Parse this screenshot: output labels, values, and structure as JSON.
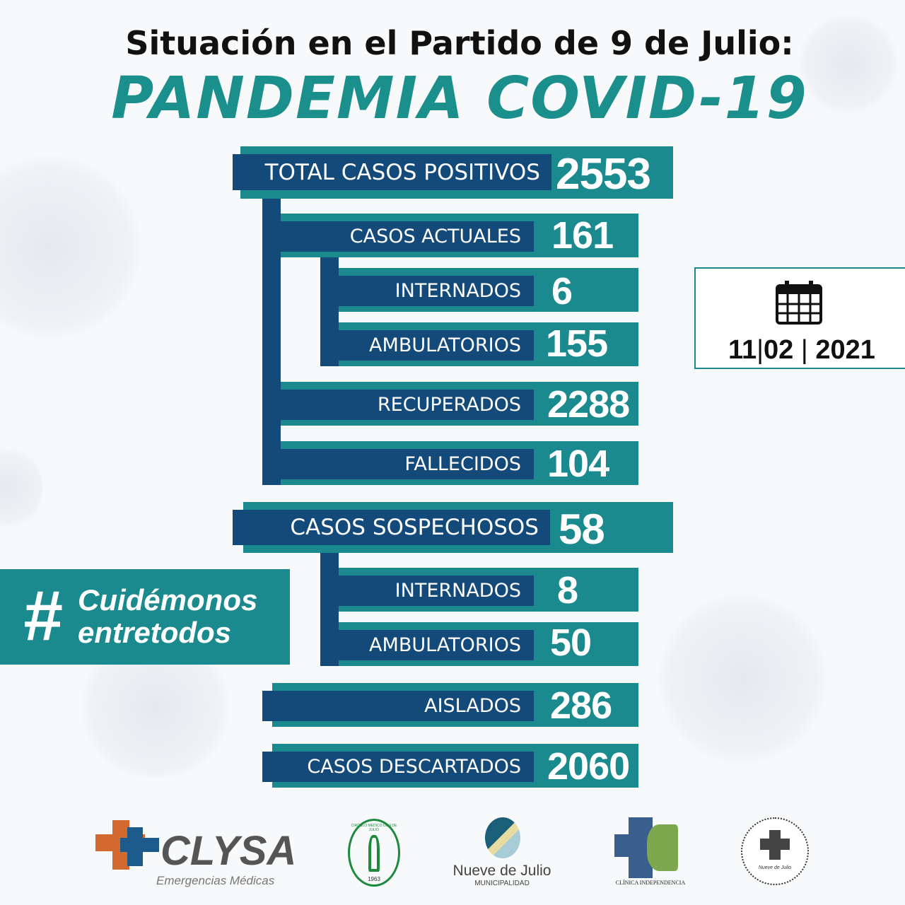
{
  "header": {
    "subtitle": "Situación en el Partido de 9 de Julio:",
    "title": "PANDEMIA COVID-19"
  },
  "stats": {
    "total_positivos": {
      "label": "TOTAL CASOS POSITIVOS",
      "value": "2553"
    },
    "actuales": {
      "label": "CASOS ACTUALES",
      "value": "161"
    },
    "actuales_internados": {
      "label": "INTERNADOS",
      "value": "6"
    },
    "actuales_ambulatorios": {
      "label": "AMBULATORIOS",
      "value": "155"
    },
    "recuperados": {
      "label": "RECUPERADOS",
      "value": "2288"
    },
    "fallecidos": {
      "label": "FALLECIDOS",
      "value": "104"
    },
    "sospechosos": {
      "label": "CASOS SOSPECHOSOS",
      "value": "58"
    },
    "sospechosos_internados": {
      "label": "INTERNADOS",
      "value": "8"
    },
    "sospechosos_ambulatorios": {
      "label": "AMBULATORIOS",
      "value": "50"
    },
    "aislados": {
      "label": "AISLADOS",
      "value": "286"
    },
    "descartados": {
      "label": "CASOS DESCARTADOS",
      "value": "2060"
    }
  },
  "hashtag": {
    "symbol": "#",
    "line1": "Cuidémonos",
    "line2": "entretodos"
  },
  "date": {
    "icon": "calendar-icon",
    "day": "11",
    "month": "02",
    "year": "2021"
  },
  "logos": {
    "clysa": {
      "name": "CLYSA",
      "tagline": "Emergencias Médicas"
    },
    "circulo": {
      "text": "CIRCULO MEDICO DE 9 DE JULIO",
      "year": "1963"
    },
    "municipio": {
      "name": "Nueve de Julio",
      "sub": "MUNICIPALIDAD"
    },
    "clinica": {
      "name": "CLÍNICA INDEPENDENCIA"
    },
    "hospital": {
      "name": "Nueve de Julio"
    }
  },
  "colors": {
    "teal": "#1a8a8e",
    "navy": "#134a7a"
  }
}
